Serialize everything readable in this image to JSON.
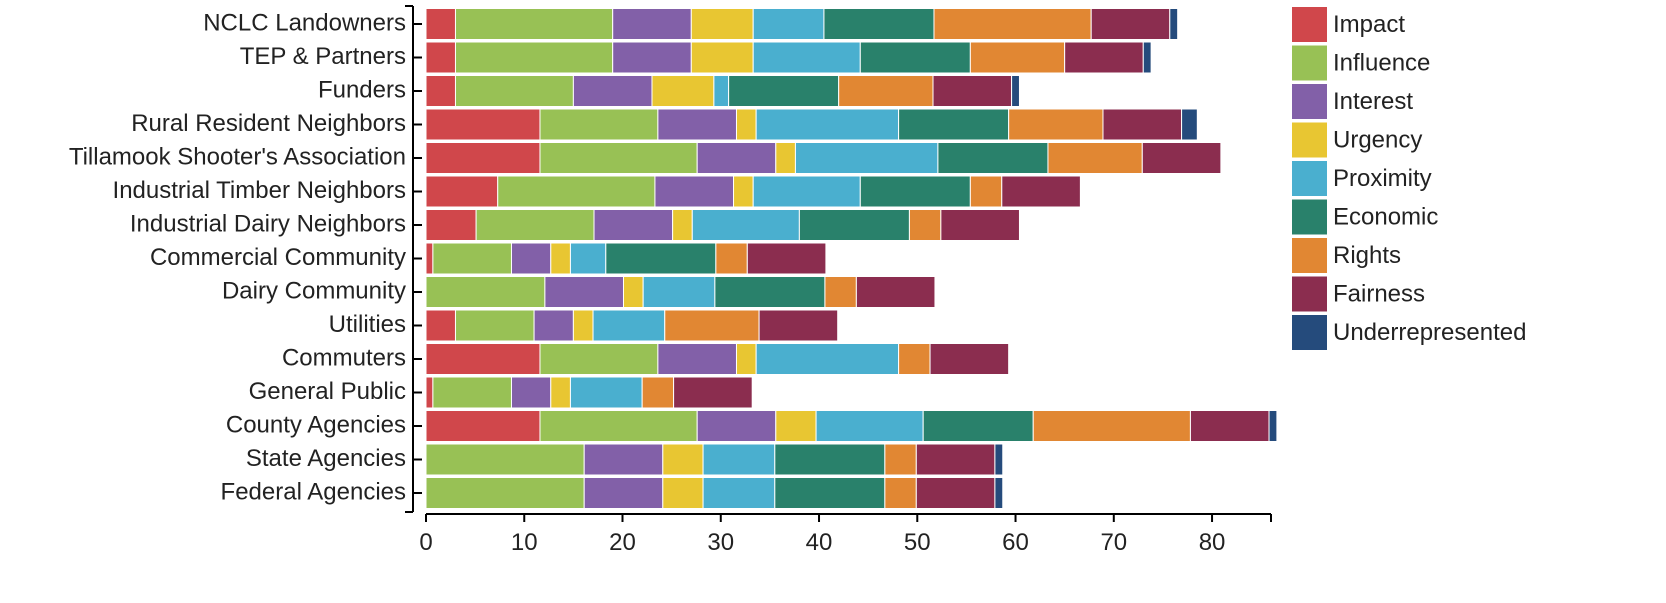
{
  "chart_data": {
    "type": "bar",
    "orientation": "horizontal",
    "stacked": true,
    "title": "",
    "xlabel": "",
    "ylabel": "",
    "xlim": [
      0,
      86
    ],
    "x_ticks": [
      0,
      10,
      20,
      30,
      40,
      50,
      60,
      70,
      80
    ],
    "grid": false,
    "legend_position": "right",
    "categories": [
      "NCLC Landowners",
      "TEP & Partners",
      "Funders",
      "Rural Resident Neighbors",
      "Tillamook Shooter's Association",
      "Industrial Timber Neighbors",
      "Industrial Dairy Neighbors",
      "Commercial Community",
      "Dairy Community",
      "Utilities",
      "Commuters",
      "General Public",
      "County Agencies",
      "State Agencies",
      "Federal Agencies"
    ],
    "series": [
      {
        "name": "Impact",
        "color": "#d0474b",
        "values": [
          3,
          3,
          3,
          11.6,
          11.6,
          7.3,
          5.1,
          0.7,
          0,
          3,
          11.6,
          0.7,
          11.6,
          0,
          0
        ]
      },
      {
        "name": "Influence",
        "color": "#98c155",
        "values": [
          16,
          16,
          12,
          12,
          16,
          16,
          12,
          8,
          12.1,
          8,
          12,
          8,
          16,
          16.1,
          16.1
        ]
      },
      {
        "name": "Interest",
        "color": "#8260a8",
        "values": [
          8,
          8,
          8,
          8,
          8,
          8,
          8,
          4,
          8,
          4,
          8,
          4,
          8,
          8,
          8
        ]
      },
      {
        "name": "Urgency",
        "color": "#e8c632",
        "values": [
          6.3,
          6.3,
          6.3,
          2,
          2,
          2,
          2,
          2,
          2,
          2,
          2,
          2,
          4.1,
          4.1,
          4.1
        ]
      },
      {
        "name": "Proximity",
        "color": "#4aafcf",
        "values": [
          7.2,
          10.9,
          1.5,
          14.5,
          14.5,
          10.9,
          10.9,
          3.6,
          7.3,
          7.3,
          14.5,
          7.3,
          10.9,
          7.3,
          7.3
        ]
      },
      {
        "name": "Economic",
        "color": "#29816b",
        "values": [
          11.2,
          11.2,
          11.2,
          11.2,
          11.2,
          11.2,
          11.2,
          11.2,
          11.2,
          0,
          0,
          0,
          11.2,
          11.2,
          11.2
        ]
      },
      {
        "name": "Rights",
        "color": "#e18733",
        "values": [
          16,
          9.6,
          9.6,
          9.6,
          9.6,
          3.2,
          3.2,
          3.2,
          3.2,
          9.6,
          3.2,
          3.2,
          16,
          3.2,
          3.2
        ]
      },
      {
        "name": "Fairness",
        "color": "#8b2d4f",
        "values": [
          8,
          8,
          8,
          8,
          8,
          8,
          8,
          8,
          8,
          8,
          8,
          8,
          8,
          8,
          8
        ]
      },
      {
        "name": "Underrepresented",
        "color": "#254b7c",
        "values": [
          0.8,
          0.8,
          0.8,
          1.6,
          0,
          0,
          0,
          0,
          0,
          0,
          0,
          0,
          0.8,
          0.8,
          0.8
        ]
      }
    ]
  }
}
